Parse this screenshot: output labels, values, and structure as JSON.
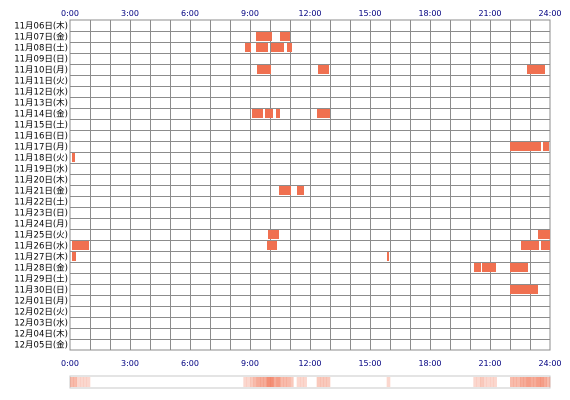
{
  "chart_data": {
    "type": "timeline",
    "title": "",
    "x_ticks": [
      "0:00",
      "3:00",
      "6:00",
      "9:00",
      "12:00",
      "15:00",
      "18:00",
      "21:00",
      "24:00"
    ],
    "xlim_hours": [
      0,
      24
    ],
    "rows": [
      "11月06日(木)",
      "11月07日(金)",
      "11月08日(土)",
      "11月09日(日)",
      "11月10日(月)",
      "11月11日(火)",
      "11月12日(水)",
      "11月13日(木)",
      "11月14日(金)",
      "11月15日(土)",
      "11月16日(日)",
      "11月17日(月)",
      "11月18日(火)",
      "11月19日(水)",
      "11月20日(木)",
      "11月21日(金)",
      "11月22日(土)",
      "11月23日(日)",
      "11月24日(月)",
      "11月25日(火)",
      "11月26日(水)",
      "11月27日(木)",
      "11月28日(金)",
      "11月29日(土)",
      "11月30日(日)",
      "12月01日(月)",
      "12月02日(火)",
      "12月03日(水)",
      "12月04日(木)",
      "12月05日(金)"
    ],
    "bar_color": "#f07050",
    "activity": [
      {
        "row": 1,
        "start": 9.3,
        "end": 10.1
      },
      {
        "row": 1,
        "start": 10.5,
        "end": 11.0
      },
      {
        "row": 2,
        "start": 8.75,
        "end": 9.05
      },
      {
        "row": 2,
        "start": 9.3,
        "end": 9.9
      },
      {
        "row": 2,
        "start": 10.05,
        "end": 10.7
      },
      {
        "row": 2,
        "start": 10.85,
        "end": 11.1
      },
      {
        "row": 4,
        "start": 9.35,
        "end": 10.05
      },
      {
        "row": 4,
        "start": 12.4,
        "end": 12.95
      },
      {
        "row": 4,
        "start": 22.85,
        "end": 23.75
      },
      {
        "row": 8,
        "start": 9.1,
        "end": 9.65
      },
      {
        "row": 8,
        "start": 9.75,
        "end": 10.15
      },
      {
        "row": 8,
        "start": 10.3,
        "end": 10.5
      },
      {
        "row": 8,
        "start": 12.35,
        "end": 13.0
      },
      {
        "row": 11,
        "start": 22.0,
        "end": 23.55
      },
      {
        "row": 11,
        "start": 23.65,
        "end": 23.95
      },
      {
        "row": 12,
        "start": 0.1,
        "end": 0.25
      },
      {
        "row": 15,
        "start": 10.45,
        "end": 11.05
      },
      {
        "row": 15,
        "start": 11.35,
        "end": 11.7
      },
      {
        "row": 19,
        "start": 9.9,
        "end": 10.45
      },
      {
        "row": 19,
        "start": 23.4,
        "end": 24.0
      },
      {
        "row": 20,
        "start": 0.1,
        "end": 0.95
      },
      {
        "row": 20,
        "start": 9.85,
        "end": 10.35
      },
      {
        "row": 20,
        "start": 22.55,
        "end": 23.45
      },
      {
        "row": 20,
        "start": 23.55,
        "end": 24.0
      },
      {
        "row": 21,
        "start": 0.1,
        "end": 0.3
      },
      {
        "row": 21,
        "start": 15.85,
        "end": 15.95
      },
      {
        "row": 22,
        "start": 20.2,
        "end": 20.55
      },
      {
        "row": 22,
        "start": 20.6,
        "end": 21.3
      },
      {
        "row": 22,
        "start": 22.0,
        "end": 22.9
      },
      {
        "row": 24,
        "start": 22.0,
        "end": 23.4
      }
    ],
    "summary_strip": "heat strip showing total activity frequency per time of day"
  }
}
